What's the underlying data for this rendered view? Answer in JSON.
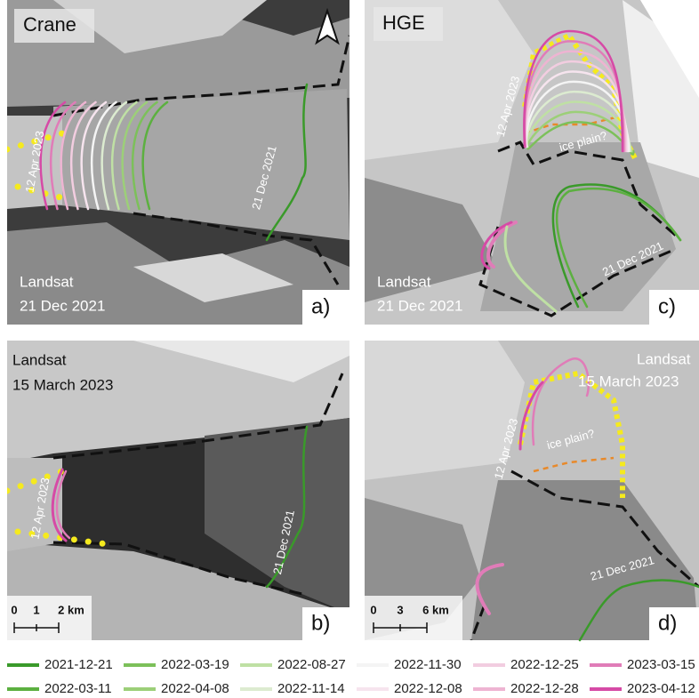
{
  "panels": [
    {
      "title": "Crane",
      "source": "Landsat",
      "date": "21 Dec 2021",
      "label": "a)",
      "front_labels": [
        "12 Apr 2023",
        "21 Dec 2021"
      ]
    },
    {
      "source": "Landsat",
      "date": "15 March 2023",
      "label": "b)",
      "front_labels": [
        "12 Apr 2023",
        "21 Dec 2021"
      ],
      "scale": [
        "0",
        "1",
        "2 km"
      ]
    },
    {
      "title": "HGE",
      "source": "Landsat",
      "date": "21 Dec 2021",
      "label": "c)",
      "front_labels": [
        "12 Apr 2023",
        "ice plain?",
        "21 Dec 2021"
      ]
    },
    {
      "source": "Landsat",
      "date": "15 March 2023",
      "label": "d)",
      "front_labels": [
        "12 Apr 2023",
        "ice plain?",
        "21 Dec 2021"
      ],
      "scale": [
        "0",
        "3",
        "6 km"
      ]
    }
  ],
  "legend": [
    {
      "label": "2021-12-21",
      "color": "#3a9a2a"
    },
    {
      "label": "2022-03-11",
      "color": "#5cb040"
    },
    {
      "label": "2022-03-19",
      "color": "#7cc05a"
    },
    {
      "label": "2022-04-08",
      "color": "#9ccf78"
    },
    {
      "label": "2022-08-27",
      "color": "#bfe0a4"
    },
    {
      "label": "2022-11-14",
      "color": "#dcebd0"
    },
    {
      "label": "2022-11-30",
      "color": "#f4f4f4"
    },
    {
      "label": "2022-12-08",
      "color": "#f6e4ee"
    },
    {
      "label": "2022-12-25",
      "color": "#f2cde0"
    },
    {
      "label": "2022-12-28",
      "color": "#eeb4d2"
    },
    {
      "label": "2023-03-15",
      "color": "#e07cb8"
    },
    {
      "label": "2023-04-12",
      "color": "#d64aa6"
    }
  ]
}
